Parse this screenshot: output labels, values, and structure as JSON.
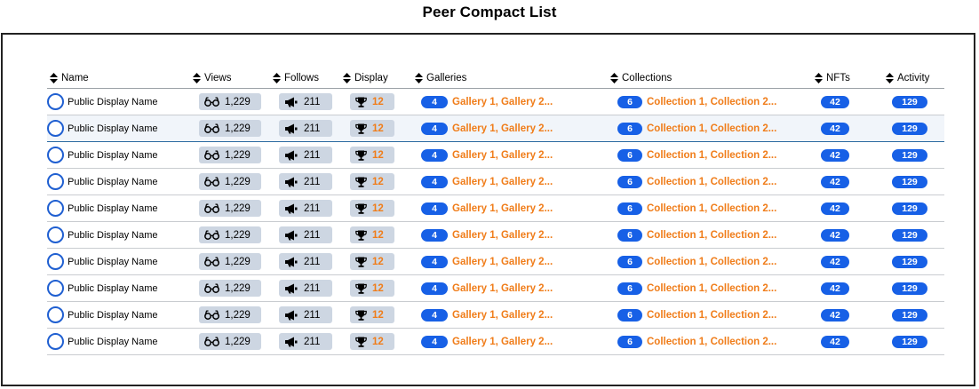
{
  "page_title": "Peer Compact List",
  "columns": {
    "name": "Name",
    "views": "Views",
    "follows": "Follows",
    "display": "Display",
    "galleries": "Galleries",
    "collections": "Collections",
    "nfts": "NFTs",
    "activity": "Activity"
  },
  "icons": {
    "sort": "sort-up-down-icon",
    "views": "glasses-icon",
    "follows": "megaphone-icon",
    "display": "trophy-icon"
  },
  "colors": {
    "accent_blue": "#1760e6",
    "link_orange": "#f07d1a",
    "stat_bg": "#cdd6e2"
  },
  "rows": [
    {
      "name": "Public Display Name",
      "views": "1,229",
      "follows": "211",
      "display": "12",
      "gallery_count": "4",
      "galleries": "Gallery 1, Gallery 2...",
      "collection_count": "6",
      "collections": "Collection 1, Collection 2...",
      "nfts": "42",
      "activity": "129"
    },
    {
      "name": "Public Display Name",
      "views": "1,229",
      "follows": "211",
      "display": "12",
      "gallery_count": "4",
      "galleries": "Gallery 1, Gallery 2...",
      "collection_count": "6",
      "collections": "Collection 1, Collection 2...",
      "nfts": "42",
      "activity": "129"
    },
    {
      "name": "Public Display Name",
      "views": "1,229",
      "follows": "211",
      "display": "12",
      "gallery_count": "4",
      "galleries": "Gallery 1, Gallery 2...",
      "collection_count": "6",
      "collections": "Collection 1, Collection 2...",
      "nfts": "42",
      "activity": "129"
    },
    {
      "name": "Public Display Name",
      "views": "1,229",
      "follows": "211",
      "display": "12",
      "gallery_count": "4",
      "galleries": "Gallery 1, Gallery 2...",
      "collection_count": "6",
      "collections": "Collection 1, Collection 2...",
      "nfts": "42",
      "activity": "129"
    },
    {
      "name": "Public Display Name",
      "views": "1,229",
      "follows": "211",
      "display": "12",
      "gallery_count": "4",
      "galleries": "Gallery 1, Gallery 2...",
      "collection_count": "6",
      "collections": "Collection 1, Collection 2...",
      "nfts": "42",
      "activity": "129"
    },
    {
      "name": "Public Display Name",
      "views": "1,229",
      "follows": "211",
      "display": "12",
      "gallery_count": "4",
      "galleries": "Gallery 1, Gallery 2...",
      "collection_count": "6",
      "collections": "Collection 1, Collection 2...",
      "nfts": "42",
      "activity": "129"
    },
    {
      "name": "Public Display Name",
      "views": "1,229",
      "follows": "211",
      "display": "12",
      "gallery_count": "4",
      "galleries": "Gallery 1, Gallery 2...",
      "collection_count": "6",
      "collections": "Collection 1, Collection 2...",
      "nfts": "42",
      "activity": "129"
    },
    {
      "name": "Public Display Name",
      "views": "1,229",
      "follows": "211",
      "display": "12",
      "gallery_count": "4",
      "galleries": "Gallery 1, Gallery 2...",
      "collection_count": "6",
      "collections": "Collection 1, Collection 2...",
      "nfts": "42",
      "activity": "129"
    },
    {
      "name": "Public Display Name",
      "views": "1,229",
      "follows": "211",
      "display": "12",
      "gallery_count": "4",
      "galleries": "Gallery 1, Gallery 2...",
      "collection_count": "6",
      "collections": "Collection 1, Collection 2...",
      "nfts": "42",
      "activity": "129"
    },
    {
      "name": "Public Display Name",
      "views": "1,229",
      "follows": "211",
      "display": "12",
      "gallery_count": "4",
      "galleries": "Gallery 1, Gallery 2...",
      "collection_count": "6",
      "collections": "Collection 1, Collection 2...",
      "nfts": "42",
      "activity": "129"
    }
  ]
}
